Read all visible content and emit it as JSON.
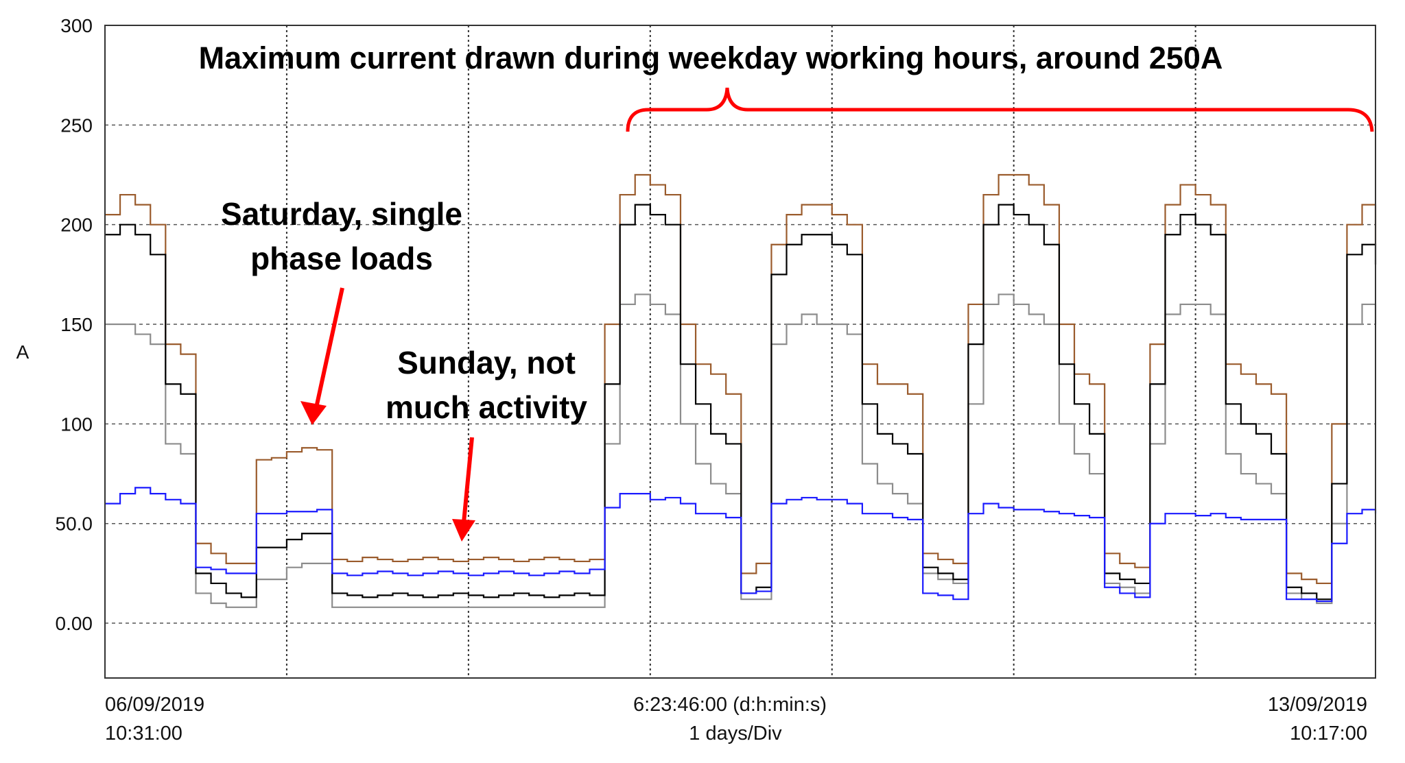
{
  "chart_data": {
    "type": "line",
    "ylabel": "A",
    "ylim": [
      -27.5,
      300
    ],
    "yticks": [
      "300",
      "250",
      "200",
      "150",
      "100",
      "50.0",
      "0.00"
    ],
    "ytick_values": [
      300,
      250,
      200,
      150,
      100,
      50,
      0
    ],
    "grid": true,
    "x_start_label": [
      "06/09/2019",
      "10:31:00"
    ],
    "x_center_label": [
      "6:23:46:00 (d:h:min:s)",
      "1 days/Div"
    ],
    "x_end_label": [
      "13/09/2019",
      "10:17:00"
    ],
    "x": [
      "2019-09-06 10:31",
      "2019-09-06 12:31",
      "2019-09-06 14:31",
      "2019-09-06 16:31",
      "2019-09-06 18:31",
      "2019-09-06 20:31",
      "2019-09-06 22:31",
      "2019-09-07 00:31",
      "2019-09-07 02:31",
      "2019-09-07 04:31",
      "2019-09-07 06:31",
      "2019-09-07 08:31",
      "2019-09-07 10:31",
      "2019-09-07 12:31",
      "2019-09-07 14:31",
      "2019-09-07 16:31",
      "2019-09-07 18:31",
      "2019-09-07 20:31",
      "2019-09-07 22:31",
      "2019-09-08 00:31",
      "2019-09-08 02:31",
      "2019-09-08 04:31",
      "2019-09-08 06:31",
      "2019-09-08 08:31",
      "2019-09-08 10:31",
      "2019-09-08 12:31",
      "2019-09-08 14:31",
      "2019-09-08 16:31",
      "2019-09-08 18:31",
      "2019-09-08 20:31",
      "2019-09-08 22:31",
      "2019-09-09 00:31",
      "2019-09-09 02:31",
      "2019-09-09 04:31",
      "2019-09-09 06:31",
      "2019-09-09 08:31",
      "2019-09-09 10:31",
      "2019-09-09 12:31",
      "2019-09-09 14:31",
      "2019-09-09 16:31",
      "2019-09-09 18:31",
      "2019-09-09 20:31",
      "2019-09-09 22:31",
      "2019-09-10 00:31",
      "2019-09-10 02:31",
      "2019-09-10 04:31",
      "2019-09-10 06:31",
      "2019-09-10 08:31",
      "2019-09-10 10:31",
      "2019-09-10 12:31",
      "2019-09-10 14:31",
      "2019-09-10 16:31",
      "2019-09-10 18:31",
      "2019-09-10 20:31",
      "2019-09-10 22:31",
      "2019-09-11 00:31",
      "2019-09-11 02:31",
      "2019-09-11 04:31",
      "2019-09-11 06:31",
      "2019-09-11 08:31",
      "2019-09-11 10:31",
      "2019-09-11 12:31",
      "2019-09-11 14:31",
      "2019-09-11 16:31",
      "2019-09-11 18:31",
      "2019-09-11 20:31",
      "2019-09-11 22:31",
      "2019-09-12 00:31",
      "2019-09-12 02:31",
      "2019-09-12 04:31",
      "2019-09-12 06:31",
      "2019-09-12 08:31",
      "2019-09-12 10:31",
      "2019-09-12 12:31",
      "2019-09-12 14:31",
      "2019-09-12 16:31",
      "2019-09-12 18:31",
      "2019-09-12 20:31",
      "2019-09-12 22:31",
      "2019-09-13 00:31",
      "2019-09-13 02:31",
      "2019-09-13 04:31",
      "2019-09-13 06:31",
      "2019-09-13 08:31",
      "2019-09-13 10:17"
    ],
    "series": [
      {
        "color": "#9a5b2c",
        "values": [
          205,
          215,
          210,
          200,
          140,
          135,
          40,
          35,
          30,
          30,
          82,
          83,
          86,
          88,
          87,
          32,
          31,
          33,
          32,
          31,
          32,
          33,
          32,
          31,
          32,
          33,
          32,
          31,
          32,
          33,
          32,
          31,
          32,
          150,
          215,
          225,
          220,
          215,
          150,
          130,
          125,
          115,
          25,
          30,
          190,
          205,
          210,
          210,
          205,
          200,
          130,
          120,
          120,
          115,
          35,
          32,
          30,
          160,
          215,
          225,
          225,
          220,
          210,
          150,
          125,
          120,
          35,
          30,
          28,
          140,
          210,
          220,
          215,
          210,
          130,
          125,
          120,
          115,
          25,
          22,
          20,
          100,
          200,
          210,
          190
        ]
      },
      {
        "color": "#8c8c8c",
        "values": [
          150,
          150,
          145,
          140,
          90,
          85,
          15,
          10,
          8,
          8,
          22,
          22,
          28,
          30,
          30,
          8,
          8,
          8,
          8,
          8,
          8,
          8,
          8,
          8,
          8,
          8,
          8,
          8,
          8,
          8,
          8,
          8,
          8,
          90,
          160,
          165,
          160,
          155,
          100,
          80,
          70,
          65,
          12,
          12,
          140,
          150,
          155,
          150,
          150,
          145,
          80,
          70,
          65,
          60,
          25,
          22,
          20,
          110,
          160,
          165,
          160,
          155,
          150,
          100,
          85,
          75,
          20,
          18,
          15,
          90,
          155,
          160,
          160,
          155,
          85,
          75,
          70,
          65,
          15,
          12,
          10,
          50,
          150,
          160,
          150
        ]
      },
      {
        "color": "#000000",
        "values": [
          195,
          200,
          195,
          185,
          120,
          115,
          25,
          20,
          15,
          13,
          38,
          38,
          42,
          45,
          45,
          15,
          14,
          13,
          14,
          15,
          14,
          13,
          14,
          15,
          14,
          13,
          14,
          15,
          14,
          13,
          14,
          15,
          14,
          120,
          200,
          210,
          205,
          200,
          130,
          110,
          95,
          90,
          15,
          18,
          175,
          190,
          195,
          195,
          190,
          185,
          110,
          95,
          90,
          85,
          28,
          25,
          22,
          140,
          200,
          210,
          205,
          200,
          190,
          130,
          110,
          95,
          25,
          22,
          20,
          120,
          195,
          205,
          200,
          195,
          110,
          100,
          95,
          85,
          18,
          15,
          12,
          70,
          185,
          190,
          180
        ]
      },
      {
        "color": "#1a1aff",
        "values": [
          60,
          65,
          68,
          65,
          62,
          60,
          28,
          27,
          25,
          25,
          55,
          55,
          56,
          56,
          57,
          25,
          24,
          25,
          26,
          25,
          24,
          25,
          26,
          25,
          24,
          25,
          26,
          25,
          24,
          25,
          26,
          25,
          27,
          58,
          65,
          65,
          62,
          63,
          60,
          55,
          55,
          53,
          15,
          16,
          60,
          62,
          63,
          62,
          62,
          60,
          55,
          55,
          53,
          52,
          15,
          14,
          12,
          55,
          60,
          58,
          57,
          57,
          56,
          55,
          54,
          53,
          18,
          15,
          13,
          50,
          55,
          55,
          54,
          55,
          53,
          52,
          52,
          52,
          12,
          12,
          11,
          40,
          55,
          57,
          55
        ]
      }
    ],
    "annotations": {
      "title": "Maximum current drawn during weekday working hours, around 250A",
      "saturday": [
        "Saturday, single",
        "phase loads"
      ],
      "sunday": [
        "Sunday, not",
        "much activity"
      ],
      "color": "#ff0000"
    }
  }
}
